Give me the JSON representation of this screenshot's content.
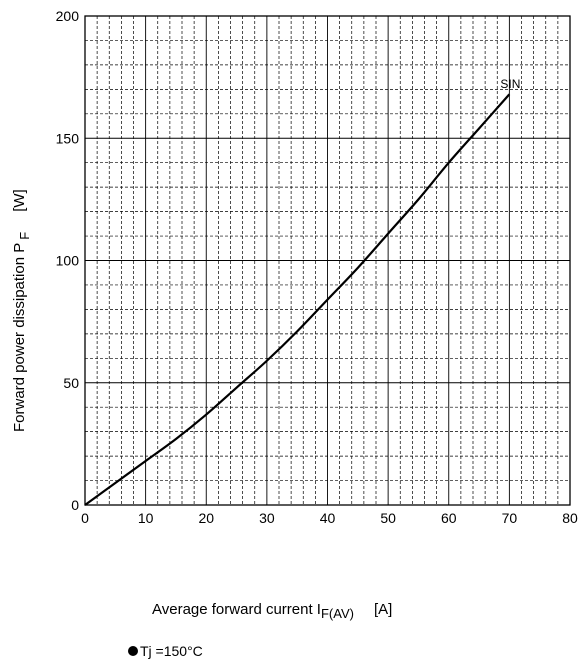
{
  "chart_data": {
    "type": "line",
    "title": "",
    "xlabel": {
      "main": "Average forward current I",
      "sub": "F(AV)",
      "unit": "[A]"
    },
    "ylabel": {
      "main": "Forward power dissipation P",
      "sub": "F",
      "unit": "[W]"
    },
    "xlim": [
      0,
      80
    ],
    "ylim": [
      0,
      200
    ],
    "x_ticks": [
      "0",
      "10",
      "20",
      "30",
      "40",
      "50",
      "60",
      "70",
      "80"
    ],
    "y_ticks": [
      "0",
      "50",
      "100",
      "150",
      "200"
    ],
    "grid": true,
    "series": [
      {
        "name": "SIN",
        "x": [
          0,
          5,
          10,
          15,
          20,
          25,
          30,
          35,
          40,
          45,
          50,
          55,
          60,
          65,
          70
        ],
        "y": [
          0,
          9,
          18,
          27,
          37,
          48,
          59,
          71,
          84,
          97,
          111,
          125,
          140,
          154,
          168
        ]
      }
    ]
  },
  "condition": {
    "text": "Tj =150°C"
  },
  "colors": {
    "line": "#000000",
    "grid": "#000000"
  }
}
